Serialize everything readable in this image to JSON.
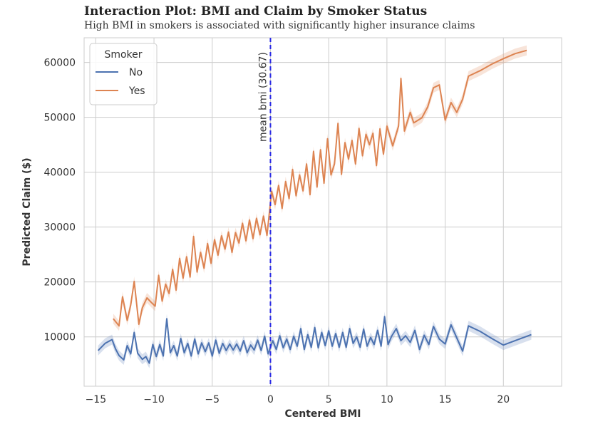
{
  "chart_data": {
    "type": "line",
    "title": "Interaction Plot: BMI and Claim by Smoker Status",
    "subtitle": "High BMI in smokers is associated with significantly higher insurance claims",
    "xlabel": "Centered BMI",
    "ylabel": "Predicted Claim ($)",
    "xlim": [
      -16,
      25
    ],
    "ylim": [
      1000,
      64500
    ],
    "xticks": [
      -15,
      -10,
      -5,
      0,
      5,
      10,
      15,
      20
    ],
    "xtick_labels": [
      "−15",
      "−10",
      "−5",
      "0",
      "5",
      "10",
      "15",
      "20"
    ],
    "yticks": [
      10000,
      20000,
      30000,
      40000,
      50000,
      60000
    ],
    "ytick_labels": [
      "10000",
      "20000",
      "30000",
      "40000",
      "50000",
      "60000"
    ],
    "grid": true,
    "legend": {
      "title": "Smoker",
      "position": "top-left"
    },
    "reference_line": {
      "x": 0,
      "label": "mean bmi (30.67)",
      "color": "#2a2ae6",
      "style": "dashed"
    },
    "series": [
      {
        "name": "No",
        "color": "#4c72b0",
        "x": [
          -14.8,
          -14.2,
          -13.6,
          -13.3,
          -13.0,
          -12.6,
          -12.3,
          -12.0,
          -11.7,
          -11.4,
          -11.0,
          -10.7,
          -10.4,
          -10.1,
          -9.8,
          -9.5,
          -9.2,
          -8.9,
          -8.6,
          -8.3,
          -8.0,
          -7.7,
          -7.4,
          -7.1,
          -6.8,
          -6.5,
          -6.2,
          -5.9,
          -5.6,
          -5.3,
          -5.0,
          -4.7,
          -4.4,
          -4.1,
          -3.8,
          -3.5,
          -3.2,
          -2.9,
          -2.6,
          -2.3,
          -2.0,
          -1.7,
          -1.4,
          -1.1,
          -0.8,
          -0.5,
          -0.2,
          0.2,
          0.5,
          0.8,
          1.1,
          1.4,
          1.7,
          2.0,
          2.3,
          2.6,
          2.9,
          3.2,
          3.5,
          3.8,
          4.1,
          4.4,
          4.7,
          5.0,
          5.3,
          5.6,
          5.9,
          6.2,
          6.5,
          6.8,
          7.1,
          7.4,
          7.7,
          8.0,
          8.3,
          8.6,
          8.9,
          9.2,
          9.5,
          9.8,
          10.1,
          10.4,
          10.8,
          11.2,
          11.6,
          12.0,
          12.4,
          12.8,
          13.2,
          13.6,
          14.0,
          14.5,
          15.0,
          15.5,
          16.0,
          16.5,
          17.0,
          18.0,
          19.0,
          20.0,
          21.0,
          22.4
        ],
        "values": [
          7500,
          8800,
          9500,
          7800,
          6600,
          5800,
          8400,
          6900,
          10800,
          7000,
          5900,
          6400,
          5200,
          8600,
          6400,
          8600,
          6500,
          13300,
          7100,
          8400,
          6500,
          9700,
          7100,
          8800,
          6500,
          9600,
          6900,
          8900,
          7300,
          8900,
          6500,
          9400,
          7000,
          8800,
          7500,
          8700,
          7600,
          8700,
          7400,
          9300,
          7100,
          8500,
          7600,
          9400,
          7500,
          10100,
          6900,
          9300,
          7700,
          10200,
          8000,
          9600,
          7700,
          10100,
          8300,
          11500,
          7700,
          10400,
          8100,
          11700,
          8000,
          10800,
          8400,
          11100,
          8300,
          10600,
          8100,
          10800,
          8100,
          11500,
          8800,
          10000,
          8100,
          11400,
          8300,
          9900,
          8600,
          11200,
          8300,
          13700,
          8600,
          10100,
          11500,
          9300,
          10200,
          9000,
          11200,
          7700,
          10300,
          8600,
          11900,
          9600,
          8700,
          12200,
          9800,
          7400,
          12000,
          11000,
          9700,
          8500,
          9300,
          10400
        ]
      },
      {
        "name": "Yes",
        "color": "#dd8452",
        "x": [
          -13.5,
          -13.0,
          -12.7,
          -12.3,
          -12.0,
          -11.7,
          -11.3,
          -11.0,
          -10.6,
          -10.2,
          -9.9,
          -9.6,
          -9.3,
          -9.0,
          -8.7,
          -8.4,
          -8.1,
          -7.8,
          -7.5,
          -7.2,
          -6.9,
          -6.6,
          -6.3,
          -6.0,
          -5.7,
          -5.4,
          -5.1,
          -4.8,
          -4.5,
          -4.2,
          -3.9,
          -3.6,
          -3.3,
          -3.0,
          -2.7,
          -2.4,
          -2.1,
          -1.8,
          -1.5,
          -1.2,
          -0.9,
          -0.6,
          -0.3,
          0.1,
          0.4,
          0.7,
          1.0,
          1.3,
          1.6,
          1.9,
          2.2,
          2.5,
          2.8,
          3.1,
          3.4,
          3.7,
          4.0,
          4.3,
          4.6,
          4.9,
          5.2,
          5.5,
          5.8,
          6.1,
          6.4,
          6.7,
          7.0,
          7.3,
          7.6,
          7.9,
          8.2,
          8.5,
          8.8,
          9.1,
          9.4,
          9.7,
          10.0,
          10.5,
          11.0,
          11.2,
          11.5,
          12.0,
          12.3,
          13.0,
          13.5,
          14.0,
          14.5,
          15.0,
          15.5,
          16.0,
          16.5,
          17.0,
          18.0,
          19.0,
          20.0,
          21.0,
          22.0
        ],
        "values": [
          13300,
          12000,
          17300,
          13000,
          15800,
          20100,
          12300,
          15300,
          17100,
          16200,
          15600,
          21200,
          16500,
          19600,
          17900,
          22300,
          18500,
          24300,
          20700,
          24600,
          20900,
          28300,
          21800,
          25400,
          22500,
          27000,
          23400,
          27700,
          24900,
          28400,
          26000,
          29100,
          25400,
          29000,
          27100,
          30700,
          27500,
          31300,
          27900,
          31600,
          28600,
          32000,
          28500,
          36500,
          34100,
          37600,
          33400,
          38300,
          35200,
          40500,
          35700,
          39500,
          36600,
          41500,
          35900,
          43800,
          37300,
          44100,
          38000,
          46100,
          39500,
          41500,
          48900,
          39600,
          45400,
          42400,
          45800,
          41500,
          48000,
          43000,
          46900,
          45000,
          47100,
          41200,
          47900,
          43300,
          48400,
          44800,
          48400,
          57100,
          47500,
          50900,
          49000,
          49900,
          51900,
          55400,
          55900,
          49500,
          52700,
          50900,
          53300,
          57500,
          58500,
          59700,
          60700,
          61600,
          62200
        ]
      }
    ]
  }
}
